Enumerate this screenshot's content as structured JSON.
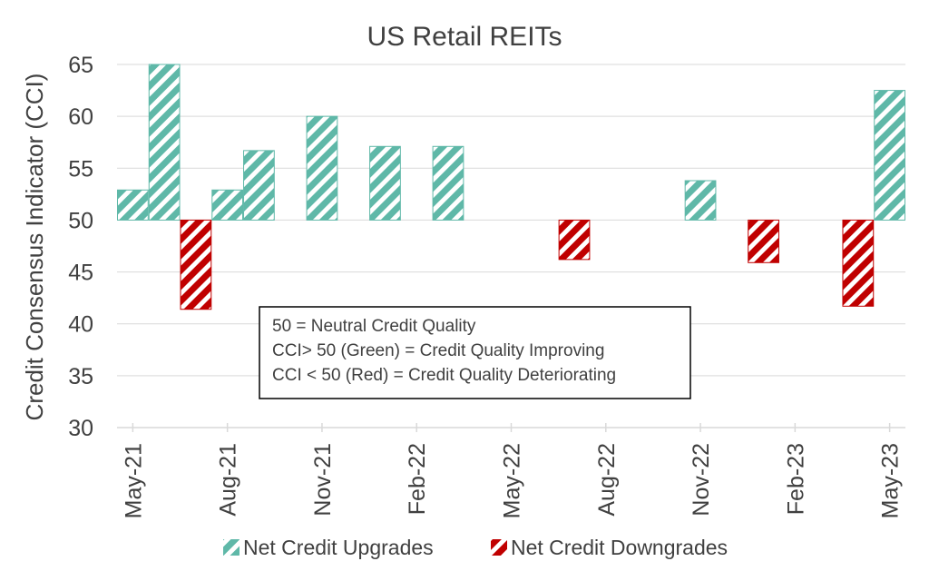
{
  "chart_data": {
    "type": "bar",
    "title": "US Retail REITs",
    "ylabel": "Credit Consensus Indicator (CCI)",
    "xlabel": "",
    "ylim": [
      30,
      65
    ],
    "yticks": [
      30,
      35,
      40,
      45,
      50,
      55,
      60,
      65
    ],
    "baseline": 50,
    "grid": true,
    "legend_position": "bottom",
    "x_tick_labels": [
      "May-21",
      "Aug-21",
      "Nov-21",
      "Feb-22",
      "May-22",
      "Aug-22",
      "Nov-22",
      "Feb-23",
      "May-23"
    ],
    "categories": [
      "May-21",
      "Jun-21",
      "Jul-21",
      "Aug-21",
      "Sep-21",
      "Oct-21",
      "Nov-21",
      "Dec-21",
      "Jan-22",
      "Feb-22",
      "Mar-22",
      "Apr-22",
      "May-22",
      "Jun-22",
      "Jul-22",
      "Aug-22",
      "Sep-22",
      "Oct-22",
      "Nov-22",
      "Dec-22",
      "Jan-23",
      "Feb-23",
      "Mar-23",
      "Apr-23",
      "May-23"
    ],
    "values": [
      52.9,
      65.0,
      41.4,
      52.9,
      56.7,
      null,
      60.0,
      null,
      57.1,
      null,
      57.1,
      null,
      null,
      null,
      46.2,
      null,
      null,
      null,
      53.8,
      null,
      45.9,
      null,
      null,
      41.7,
      62.5
    ],
    "series": [
      {
        "name": "Net Credit Upgrades",
        "color": "#5fb8a8",
        "condition": "value > 50"
      },
      {
        "name": "Net Credit Downgrades",
        "color": "#c00000",
        "condition": "value < 50"
      }
    ],
    "annotation": {
      "lines": [
        "50 = Neutral Credit Quality",
        "CCI> 50 (Green) = Credit Quality Improving",
        "CCI < 50 (Red) = Credit Quality Deteriorating"
      ]
    }
  }
}
